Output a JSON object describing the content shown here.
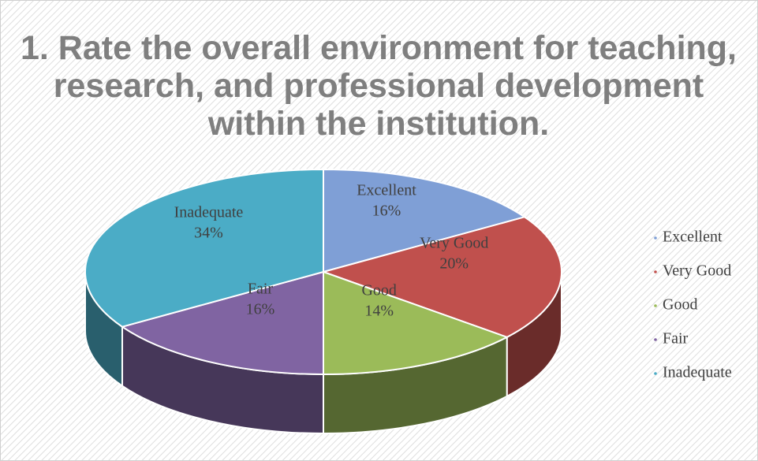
{
  "chart_data": {
    "type": "pie3d",
    "title": "1. Rate the overall environment for teaching, research, and professional development within the institution.",
    "categories": [
      "Excellent",
      "Very Good",
      "Good",
      "Fair",
      "Inadequate"
    ],
    "values": [
      16,
      20,
      14,
      16,
      34
    ],
    "value_labels": [
      "16%",
      "20%",
      "14%",
      "16%",
      "34%"
    ],
    "colors": [
      "#7f9fd6",
      "#c0504d",
      "#9bbb59",
      "#8064a2",
      "#4bacc6"
    ],
    "legend": "right"
  }
}
